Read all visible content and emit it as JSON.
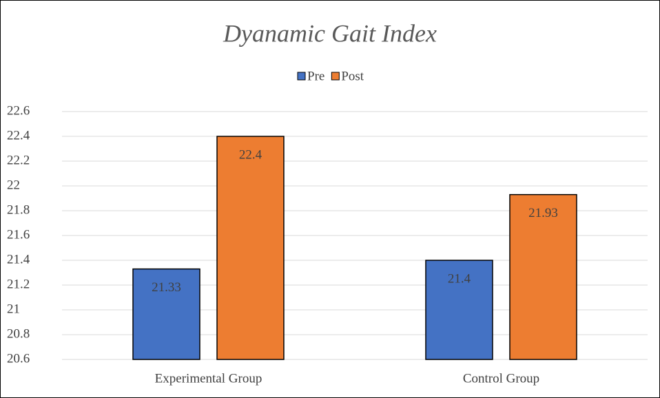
{
  "chart_data": {
    "type": "bar",
    "title": "Dyanamic Gait Index",
    "categories": [
      "Experimental Group",
      "Control Group"
    ],
    "series": [
      {
        "name": "Pre",
        "color": "#4472c4",
        "values": [
          21.33,
          21.4
        ]
      },
      {
        "name": "Post",
        "color": "#ed7d31",
        "values": [
          22.4,
          21.93
        ]
      }
    ],
    "ylim": [
      20.6,
      22.6
    ],
    "yticks": [
      20.6,
      20.8,
      21,
      21.2,
      21.4,
      21.6,
      21.8,
      22,
      22.2,
      22.4,
      22.6
    ],
    "grid": true,
    "legend": "top"
  }
}
